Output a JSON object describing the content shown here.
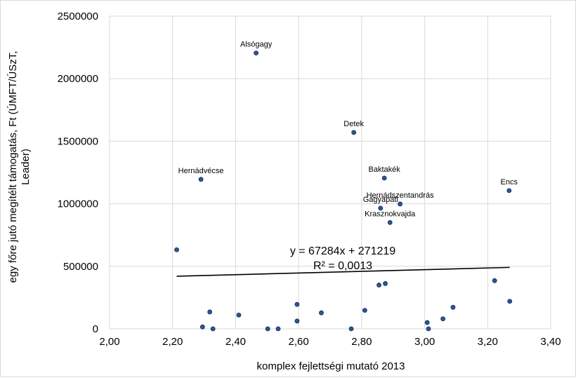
{
  "chart_data": {
    "type": "scatter",
    "title": "",
    "xlabel": "komplex fejlettségi mutató 2013",
    "ylabel_lines": [
      "egy főre jutó megítélt támogatás, Ft (ÚMFT/ÚSzT,",
      "Leader)"
    ],
    "xlim": [
      2.0,
      3.4
    ],
    "ylim": [
      0,
      2500000
    ],
    "x_ticks": [
      2.0,
      2.2,
      2.4,
      2.6,
      2.8,
      3.0,
      3.2,
      3.4
    ],
    "x_tick_labels": [
      "2,00",
      "2,20",
      "2,40",
      "2,60",
      "2,80",
      "3,00",
      "3,20",
      "3,40"
    ],
    "y_ticks": [
      0,
      500000,
      1000000,
      1500000,
      2000000,
      2500000
    ],
    "y_tick_labels": [
      "0",
      "500000",
      "1000000",
      "1500000",
      "2000000",
      "2500000"
    ],
    "grid": true,
    "marker_color": "#2e5597",
    "marker_edge": "#0f2a52",
    "points": [
      {
        "x": 2.465,
        "y": 2205000,
        "label": "Alsógagy"
      },
      {
        "x": 2.775,
        "y": 1570000,
        "label": "Detek"
      },
      {
        "x": 2.29,
        "y": 1195000,
        "label": "Hernádvécse"
      },
      {
        "x": 2.872,
        "y": 1205000,
        "label": "Baktakék"
      },
      {
        "x": 3.268,
        "y": 1105000,
        "label": "Encs"
      },
      {
        "x": 2.922,
        "y": 998000,
        "label": "Hernádszentandrás"
      },
      {
        "x": 2.86,
        "y": 965000,
        "label": "Gagyapáti"
      },
      {
        "x": 2.89,
        "y": 850000,
        "label": "Krasznokvajda"
      },
      {
        "x": 2.213,
        "y": 632000,
        "label": ""
      },
      {
        "x": 3.222,
        "y": 385000,
        "label": ""
      },
      {
        "x": 2.875,
        "y": 362000,
        "label": ""
      },
      {
        "x": 2.855,
        "y": 350000,
        "label": ""
      },
      {
        "x": 3.27,
        "y": 220000,
        "label": ""
      },
      {
        "x": 2.595,
        "y": 195000,
        "label": ""
      },
      {
        "x": 3.09,
        "y": 172000,
        "label": ""
      },
      {
        "x": 2.81,
        "y": 148000,
        "label": ""
      },
      {
        "x": 2.318,
        "y": 135000,
        "label": ""
      },
      {
        "x": 2.672,
        "y": 128000,
        "label": ""
      },
      {
        "x": 2.41,
        "y": 110000,
        "label": ""
      },
      {
        "x": 3.058,
        "y": 80000,
        "label": ""
      },
      {
        "x": 2.595,
        "y": 62000,
        "label": ""
      },
      {
        "x": 3.008,
        "y": 50000,
        "label": ""
      },
      {
        "x": 2.295,
        "y": 15000,
        "label": ""
      },
      {
        "x": 2.328,
        "y": 0,
        "label": ""
      },
      {
        "x": 2.502,
        "y": 0,
        "label": ""
      },
      {
        "x": 2.535,
        "y": 0,
        "label": ""
      },
      {
        "x": 2.767,
        "y": 0,
        "label": ""
      },
      {
        "x": 3.012,
        "y": 0,
        "label": ""
      }
    ],
    "trendline": {
      "slope": 67284,
      "intercept": 271219,
      "x_range": [
        2.213,
        3.27
      ],
      "color": "#000000",
      "equation_text": "y = 67284x + 271219",
      "r2_text": "R² = 0,0013"
    }
  }
}
